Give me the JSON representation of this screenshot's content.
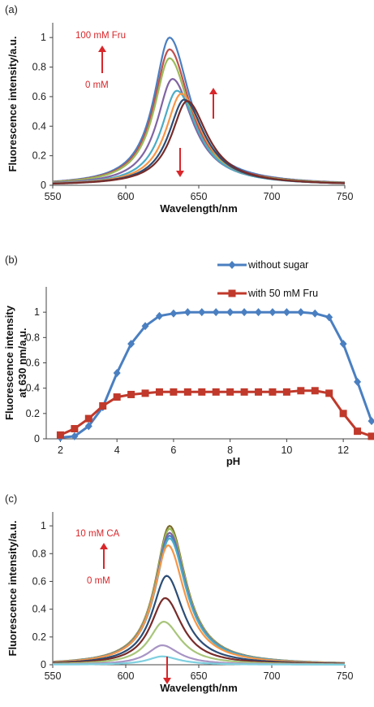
{
  "chart_data": [
    {
      "panel_label": "(a)",
      "type": "line",
      "xlabel": "Wavelength/nm",
      "ylabel": "Fluorescence intensity/a.u.",
      "xlim": [
        550,
        750
      ],
      "ylim": [
        0,
        1.1
      ],
      "xticks": [
        "550",
        "600",
        "650",
        "700",
        "750"
      ],
      "yticks": [
        "0",
        "0.2",
        "0.4",
        "0.6",
        "0.8",
        "1"
      ],
      "grid": false,
      "annotations": [
        {
          "text": "100 mM Fru"
        },
        {
          "text": "0 mM"
        }
      ],
      "series": [
        {
          "peak_x": 630,
          "peak_y": 1.0,
          "color": "#4a7fc1"
        },
        {
          "peak_x": 630,
          "peak_y": 0.92,
          "color": "#c0504d"
        },
        {
          "peak_x": 630,
          "peak_y": 0.86,
          "color": "#9bbb59"
        },
        {
          "peak_x": 632,
          "peak_y": 0.72,
          "color": "#8064a2"
        },
        {
          "peak_x": 635,
          "peak_y": 0.64,
          "color": "#4bacc6"
        },
        {
          "peak_x": 638,
          "peak_y": 0.62,
          "color": "#f79646"
        },
        {
          "peak_x": 640,
          "peak_y": 0.58,
          "color": "#2c4d75"
        },
        {
          "peak_x": 642,
          "peak_y": 0.57,
          "color": "#772c2a"
        }
      ]
    },
    {
      "panel_label": "(b)",
      "type": "line",
      "xlabel": "pH",
      "ylabel": "Fluorescence intensity at 630 nm/a.u.",
      "ylabel_lines": [
        "Fluorescence intensity",
        "at 630 nm/a.u."
      ],
      "xlim": [
        1.5,
        13
      ],
      "ylim": [
        0,
        1.2
      ],
      "xticks": [
        "2",
        "4",
        "6",
        "8",
        "10",
        "12"
      ],
      "yticks": [
        "0",
        "0.2",
        "0.4",
        "0.6",
        "0.8",
        "1"
      ],
      "grid": false,
      "legend": "top-right",
      "series": [
        {
          "name": "without sugar",
          "color": "#4a7fc1",
          "marker": "diamond",
          "points": [
            [
              2.0,
              0.01
            ],
            [
              2.5,
              0.02
            ],
            [
              3.0,
              0.1
            ],
            [
              3.5,
              0.25
            ],
            [
              4.0,
              0.52
            ],
            [
              4.5,
              0.75
            ],
            [
              5.0,
              0.89
            ],
            [
              5.5,
              0.97
            ],
            [
              6.0,
              0.99
            ],
            [
              6.5,
              1.0
            ],
            [
              7.0,
              1.0
            ],
            [
              7.5,
              1.0
            ],
            [
              8.0,
              1.0
            ],
            [
              8.5,
              1.0
            ],
            [
              9.0,
              1.0
            ],
            [
              9.5,
              1.0
            ],
            [
              10.0,
              1.0
            ],
            [
              10.5,
              1.0
            ],
            [
              11.0,
              0.99
            ],
            [
              11.5,
              0.96
            ],
            [
              12.0,
              0.75
            ],
            [
              12.5,
              0.45
            ],
            [
              13.0,
              0.14
            ]
          ]
        },
        {
          "name": "with 50 mM Fru",
          "color": "#c0392b",
          "marker": "square",
          "points": [
            [
              2.0,
              0.03
            ],
            [
              2.5,
              0.08
            ],
            [
              3.0,
              0.16
            ],
            [
              3.5,
              0.26
            ],
            [
              4.0,
              0.33
            ],
            [
              4.5,
              0.35
            ],
            [
              5.0,
              0.36
            ],
            [
              5.5,
              0.37
            ],
            [
              6.0,
              0.37
            ],
            [
              6.5,
              0.37
            ],
            [
              7.0,
              0.37
            ],
            [
              7.5,
              0.37
            ],
            [
              8.0,
              0.37
            ],
            [
              8.5,
              0.37
            ],
            [
              9.0,
              0.37
            ],
            [
              9.5,
              0.37
            ],
            [
              10.0,
              0.37
            ],
            [
              10.5,
              0.38
            ],
            [
              11.0,
              0.38
            ],
            [
              11.5,
              0.36
            ],
            [
              12.0,
              0.2
            ],
            [
              12.5,
              0.06
            ],
            [
              13.0,
              0.02
            ]
          ]
        }
      ]
    },
    {
      "panel_label": "(c)",
      "type": "line",
      "xlabel": "Wavelength/nm",
      "ylabel": "Fluorescence intensity/a.u.",
      "xlim": [
        550,
        750
      ],
      "ylim": [
        0,
        1.1
      ],
      "xticks": [
        "550",
        "600",
        "650",
        "700",
        "750"
      ],
      "yticks": [
        "0",
        "0.2",
        "0.4",
        "0.6",
        "0.8",
        "1"
      ],
      "grid": false,
      "annotations": [
        {
          "text": "10 mM CA"
        },
        {
          "text": "0 mM"
        }
      ],
      "series": [
        {
          "peak_x": 630,
          "peak_y": 1.0,
          "color": "#7a6a2a"
        },
        {
          "peak_x": 630,
          "peak_y": 0.98,
          "color": "#9bbb59"
        },
        {
          "peak_x": 630,
          "peak_y": 0.95,
          "color": "#8064a2"
        },
        {
          "peak_x": 630,
          "peak_y": 0.93,
          "color": "#4a7fc1"
        },
        {
          "peak_x": 630,
          "peak_y": 0.91,
          "color": "#4bacc6"
        },
        {
          "peak_x": 629,
          "peak_y": 0.86,
          "color": "#f79646"
        },
        {
          "peak_x": 628,
          "peak_y": 0.64,
          "color": "#2c4d75"
        },
        {
          "peak_x": 627,
          "peak_y": 0.48,
          "color": "#772c2a"
        },
        {
          "peak_x": 626,
          "peak_y": 0.31,
          "color": "#a8c57a"
        },
        {
          "peak_x": 625,
          "peak_y": 0.14,
          "color": "#a794c4"
        },
        {
          "peak_x": 625,
          "peak_y": 0.06,
          "color": "#7fd0e0"
        }
      ]
    }
  ]
}
